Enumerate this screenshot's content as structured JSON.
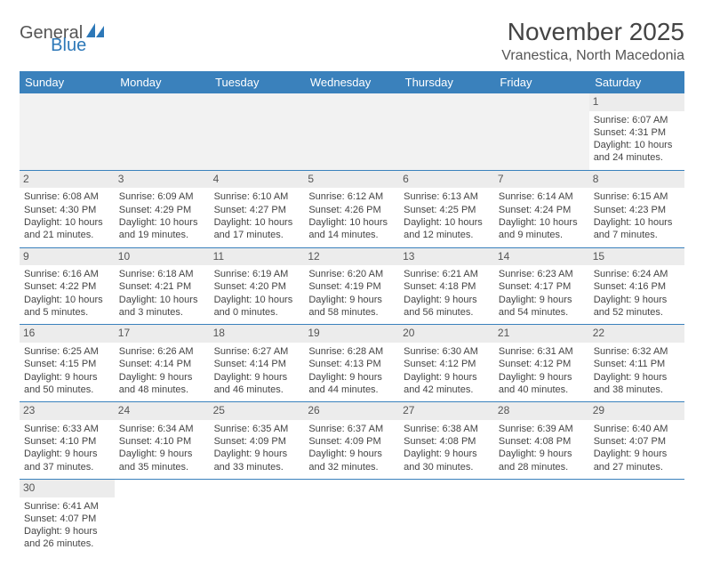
{
  "logo": {
    "text1": "General",
    "text2": "Blue"
  },
  "title": "November 2025",
  "location": "Vranestica, North Macedonia",
  "weekdays": [
    "Sunday",
    "Monday",
    "Tuesday",
    "Wednesday",
    "Thursday",
    "Friday",
    "Saturday"
  ],
  "leadingEmpty": 6,
  "colors": {
    "headerBg": "#3a81bc",
    "headerText": "#ffffff",
    "dayNumBg": "#ececec",
    "emptyBg": "#f2f2f2",
    "borderColor": "#3a81bc",
    "bodyText": "#444444",
    "logoGray": "#555555",
    "logoBlue": "#2d78b8"
  },
  "days": [
    {
      "n": 1,
      "sunrise": "6:07 AM",
      "sunset": "4:31 PM",
      "daylight": "10 hours and 24 minutes."
    },
    {
      "n": 2,
      "sunrise": "6:08 AM",
      "sunset": "4:30 PM",
      "daylight": "10 hours and 21 minutes."
    },
    {
      "n": 3,
      "sunrise": "6:09 AM",
      "sunset": "4:29 PM",
      "daylight": "10 hours and 19 minutes."
    },
    {
      "n": 4,
      "sunrise": "6:10 AM",
      "sunset": "4:27 PM",
      "daylight": "10 hours and 17 minutes."
    },
    {
      "n": 5,
      "sunrise": "6:12 AM",
      "sunset": "4:26 PM",
      "daylight": "10 hours and 14 minutes."
    },
    {
      "n": 6,
      "sunrise": "6:13 AM",
      "sunset": "4:25 PM",
      "daylight": "10 hours and 12 minutes."
    },
    {
      "n": 7,
      "sunrise": "6:14 AM",
      "sunset": "4:24 PM",
      "daylight": "10 hours and 9 minutes."
    },
    {
      "n": 8,
      "sunrise": "6:15 AM",
      "sunset": "4:23 PM",
      "daylight": "10 hours and 7 minutes."
    },
    {
      "n": 9,
      "sunrise": "6:16 AM",
      "sunset": "4:22 PM",
      "daylight": "10 hours and 5 minutes."
    },
    {
      "n": 10,
      "sunrise": "6:18 AM",
      "sunset": "4:21 PM",
      "daylight": "10 hours and 3 minutes."
    },
    {
      "n": 11,
      "sunrise": "6:19 AM",
      "sunset": "4:20 PM",
      "daylight": "10 hours and 0 minutes."
    },
    {
      "n": 12,
      "sunrise": "6:20 AM",
      "sunset": "4:19 PM",
      "daylight": "9 hours and 58 minutes."
    },
    {
      "n": 13,
      "sunrise": "6:21 AM",
      "sunset": "4:18 PM",
      "daylight": "9 hours and 56 minutes."
    },
    {
      "n": 14,
      "sunrise": "6:23 AM",
      "sunset": "4:17 PM",
      "daylight": "9 hours and 54 minutes."
    },
    {
      "n": 15,
      "sunrise": "6:24 AM",
      "sunset": "4:16 PM",
      "daylight": "9 hours and 52 minutes."
    },
    {
      "n": 16,
      "sunrise": "6:25 AM",
      "sunset": "4:15 PM",
      "daylight": "9 hours and 50 minutes."
    },
    {
      "n": 17,
      "sunrise": "6:26 AM",
      "sunset": "4:14 PM",
      "daylight": "9 hours and 48 minutes."
    },
    {
      "n": 18,
      "sunrise": "6:27 AM",
      "sunset": "4:14 PM",
      "daylight": "9 hours and 46 minutes."
    },
    {
      "n": 19,
      "sunrise": "6:28 AM",
      "sunset": "4:13 PM",
      "daylight": "9 hours and 44 minutes."
    },
    {
      "n": 20,
      "sunrise": "6:30 AM",
      "sunset": "4:12 PM",
      "daylight": "9 hours and 42 minutes."
    },
    {
      "n": 21,
      "sunrise": "6:31 AM",
      "sunset": "4:12 PM",
      "daylight": "9 hours and 40 minutes."
    },
    {
      "n": 22,
      "sunrise": "6:32 AM",
      "sunset": "4:11 PM",
      "daylight": "9 hours and 38 minutes."
    },
    {
      "n": 23,
      "sunrise": "6:33 AM",
      "sunset": "4:10 PM",
      "daylight": "9 hours and 37 minutes."
    },
    {
      "n": 24,
      "sunrise": "6:34 AM",
      "sunset": "4:10 PM",
      "daylight": "9 hours and 35 minutes."
    },
    {
      "n": 25,
      "sunrise": "6:35 AM",
      "sunset": "4:09 PM",
      "daylight": "9 hours and 33 minutes."
    },
    {
      "n": 26,
      "sunrise": "6:37 AM",
      "sunset": "4:09 PM",
      "daylight": "9 hours and 32 minutes."
    },
    {
      "n": 27,
      "sunrise": "6:38 AM",
      "sunset": "4:08 PM",
      "daylight": "9 hours and 30 minutes."
    },
    {
      "n": 28,
      "sunrise": "6:39 AM",
      "sunset": "4:08 PM",
      "daylight": "9 hours and 28 minutes."
    },
    {
      "n": 29,
      "sunrise": "6:40 AM",
      "sunset": "4:07 PM",
      "daylight": "9 hours and 27 minutes."
    },
    {
      "n": 30,
      "sunrise": "6:41 AM",
      "sunset": "4:07 PM",
      "daylight": "9 hours and 26 minutes."
    }
  ],
  "labels": {
    "sunrise": "Sunrise:",
    "sunset": "Sunset:",
    "daylight": "Daylight:"
  }
}
